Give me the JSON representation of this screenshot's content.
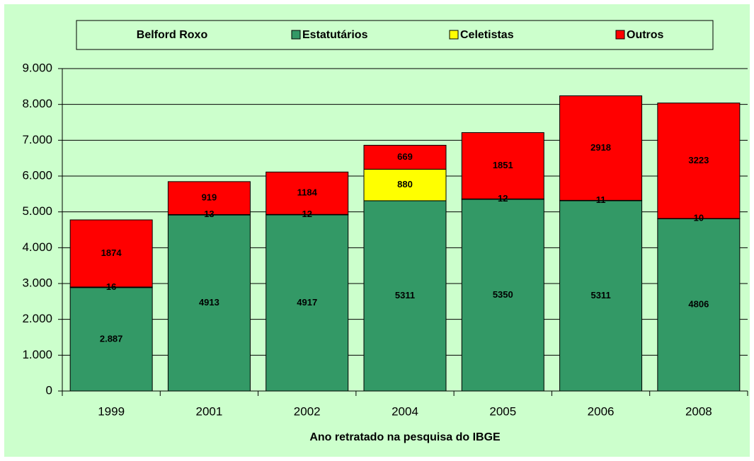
{
  "chart_data": {
    "type": "stacked_bar",
    "legend_title": "Belford Roxo",
    "x_label": "Ano retratado na pesquisa do IBGE",
    "categories": [
      "1999",
      "2001",
      "2002",
      "2004",
      "2005",
      "2006",
      "2008"
    ],
    "series": [
      {
        "name": "Estatutários",
        "color": "#339966",
        "values": [
          2887,
          4913,
          4917,
          5311,
          5350,
          5311,
          4806
        ],
        "value_labels": [
          "2.887",
          "4913",
          "4917",
          "5311",
          "5350",
          "5311",
          "4806"
        ]
      },
      {
        "name": "Celetistas",
        "color": "#ffff00",
        "values": [
          16,
          13,
          12,
          880,
          12,
          11,
          10
        ]
      },
      {
        "name": "Outros",
        "color": "#ff0000",
        "values": [
          1874,
          919,
          1184,
          669,
          1851,
          2918,
          3223
        ]
      }
    ],
    "ylim": [
      0,
      9000
    ],
    "yticks": [
      0,
      {
        "value": 1000,
        "label": "1.000"
      },
      {
        "value": 2000,
        "label": "2.000"
      },
      {
        "value": 3000,
        "label": "3.000"
      },
      {
        "value": 4000,
        "label": "4.000"
      },
      {
        "value": 5000,
        "label": "5.000"
      },
      {
        "value": 6000,
        "label": "6.000"
      },
      {
        "value": 7000,
        "label": "7.000"
      },
      {
        "value": 8000,
        "label": "8.000"
      },
      {
        "value": 9000,
        "label": "9.000"
      }
    ],
    "grid": true,
    "legend_position": "top"
  }
}
